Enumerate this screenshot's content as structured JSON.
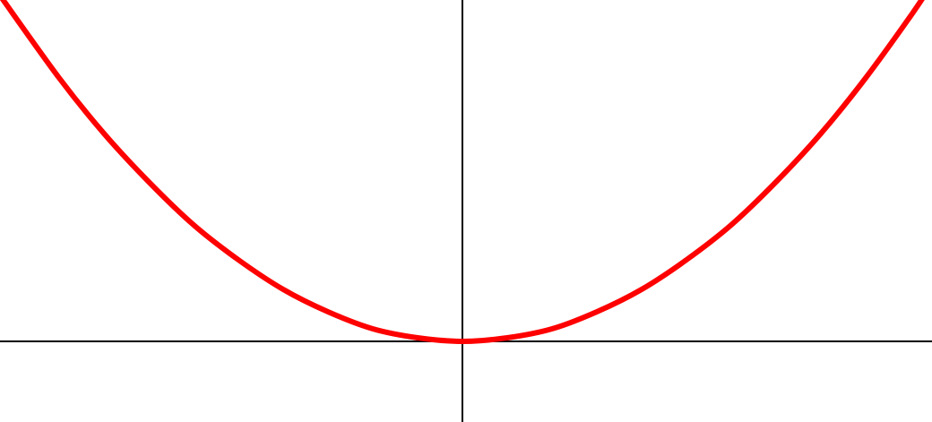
{
  "chart_data": {
    "type": "line",
    "title": "",
    "xlabel": "",
    "ylabel": "",
    "grid": false,
    "legend": "none",
    "colors": {
      "axes": "#000000",
      "curve": "#ff0000",
      "background": "#ffffff"
    },
    "xlim": [
      -5.16,
      5.24
    ],
    "ylim": [
      -0.9,
      3.81
    ],
    "series": [
      {
        "x": [
          -5.16,
          -4.5,
          -4.0,
          -3.5,
          -3.0,
          -2.5,
          -2.0,
          -1.5,
          -1.0,
          -0.5,
          0.0,
          0.5,
          1.0,
          1.5,
          2.0,
          2.5,
          3.0,
          3.5,
          4.0,
          4.5,
          5.0,
          5.24
        ],
        "y": [
          3.86,
          2.94,
          2.32,
          1.78,
          1.3,
          0.91,
          0.58,
          0.33,
          0.14,
          0.04,
          0.0,
          0.04,
          0.14,
          0.33,
          0.58,
          0.91,
          1.3,
          1.78,
          2.32,
          2.94,
          3.63,
          3.99
        ]
      }
    ]
  }
}
